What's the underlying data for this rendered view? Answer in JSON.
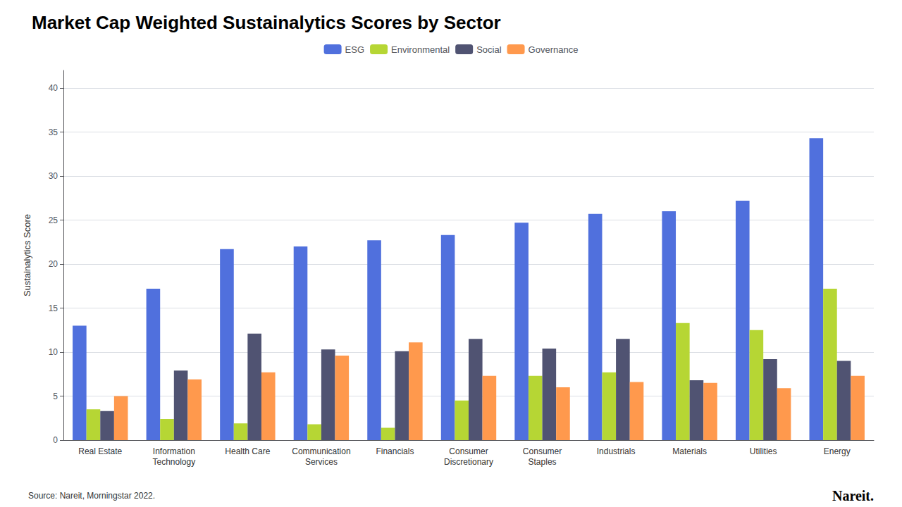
{
  "chart_data": {
    "type": "bar",
    "title": "Market Cap Weighted Sustainalytics Scores by Sector",
    "y_label": "Sustainalytics Score",
    "annotations": [
      "Source: Nareit, Morningstar 2022.",
      "Nareit."
    ],
    "categories": [
      "Real Estate",
      "Information\nTechnology",
      "Health Care",
      "Communication\nServices",
      "Financials",
      "Consumer\nDiscretionary",
      "Consumer\nStaples",
      "Industrials",
      "Materials",
      "Utilities",
      "Energy"
    ],
    "series": [
      {
        "name": "ESG",
        "values": [
          13.0,
          17.2,
          21.7,
          22.0,
          22.7,
          23.3,
          24.7,
          25.7,
          26.0,
          27.2,
          34.3
        ]
      },
      {
        "name": "Environmental",
        "values": [
          3.5,
          2.4,
          1.9,
          1.8,
          1.4,
          4.5,
          7.3,
          7.7,
          13.3,
          12.5,
          17.2
        ]
      },
      {
        "name": "Social",
        "values": [
          3.3,
          7.9,
          12.1,
          10.3,
          10.1,
          11.5,
          10.4,
          11.5,
          6.8,
          9.2,
          9.0
        ]
      },
      {
        "name": "Governance",
        "values": [
          5.0,
          6.9,
          7.7,
          9.6,
          11.1,
          7.3,
          6.0,
          6.6,
          6.5,
          5.9,
          7.3
        ]
      }
    ],
    "ylim": [
      0,
      42
    ],
    "yticks": [
      0,
      5,
      10,
      15,
      20,
      25,
      30,
      35,
      40
    ],
    "grid": true,
    "legend": "top"
  }
}
